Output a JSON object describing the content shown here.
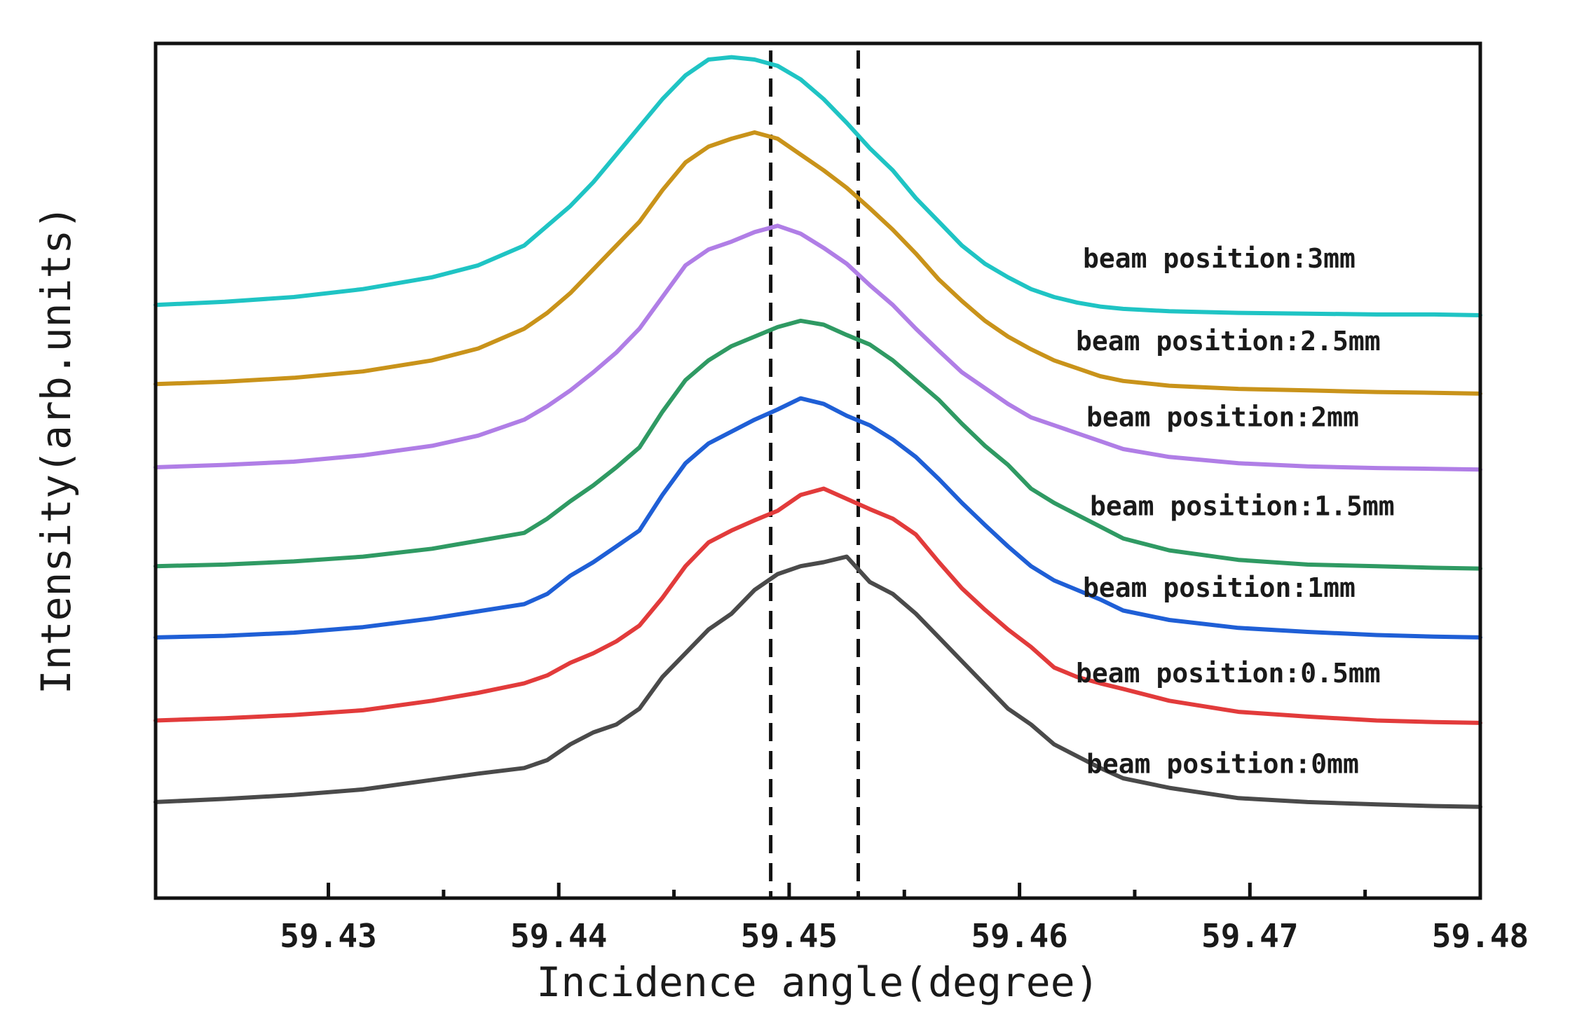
{
  "chart_data": {
    "type": "line",
    "title": "",
    "xlabel": "Incidence angle(degree)",
    "ylabel": "Intensity(arb.units)",
    "xlim": [
      59.4225,
      59.48
    ],
    "ylim": [
      0,
      1.0
    ],
    "grid": false,
    "x_ticks": [
      "59.43",
      "59.44",
      "59.45",
      "59.46",
      "59.47",
      "59.48"
    ],
    "x_tick_values": [
      59.43,
      59.44,
      59.45,
      59.46,
      59.47,
      59.48
    ],
    "minor_x_ticks": [
      59.435,
      59.445,
      59.455,
      59.465,
      59.475
    ],
    "y_ticks_shown": false,
    "reference_lines": [
      {
        "x": 59.4492,
        "style": "dashed",
        "color": "#111111"
      },
      {
        "x": 59.453,
        "style": "dashed",
        "color": "#111111"
      }
    ],
    "x": [
      59.4225,
      59.4255,
      59.4285,
      59.4315,
      59.4345,
      59.4365,
      59.4385,
      59.4395,
      59.4405,
      59.4415,
      59.4425,
      59.4435,
      59.4445,
      59.4455,
      59.4465,
      59.4475,
      59.4485,
      59.4495,
      59.4505,
      59.4515,
      59.4525,
      59.4535,
      59.4545,
      59.4555,
      59.4565,
      59.4575,
      59.4585,
      59.4595,
      59.4605,
      59.4615,
      59.4625,
      59.4635,
      59.4645,
      59.4665,
      59.4695,
      59.4725,
      59.4755,
      59.478,
      59.48
    ],
    "series": [
      {
        "name": "beam position:0mm",
        "label": "beam position:0mm",
        "color": "#4a4a4a",
        "values": [
          0.062,
          0.066,
          0.071,
          0.078,
          0.09,
          0.098,
          0.105,
          0.115,
          0.135,
          0.15,
          0.16,
          0.18,
          0.22,
          0.25,
          0.28,
          0.3,
          0.33,
          0.35,
          0.36,
          0.365,
          0.372,
          0.34,
          0.325,
          0.3,
          0.27,
          0.24,
          0.21,
          0.18,
          0.16,
          0.135,
          0.12,
          0.105,
          0.092,
          0.08,
          0.067,
          0.062,
          0.059,
          0.057,
          0.056
        ]
      },
      {
        "name": "beam position:0.5mm",
        "label": "beam position:0.5mm",
        "color": "#e23b3b",
        "values": [
          0.165,
          0.168,
          0.172,
          0.178,
          0.19,
          0.2,
          0.212,
          0.222,
          0.238,
          0.25,
          0.265,
          0.285,
          0.32,
          0.36,
          0.39,
          0.405,
          0.418,
          0.43,
          0.45,
          0.458,
          0.445,
          0.432,
          0.42,
          0.4,
          0.365,
          0.332,
          0.305,
          0.28,
          0.258,
          0.232,
          0.22,
          0.212,
          0.205,
          0.19,
          0.176,
          0.17,
          0.165,
          0.163,
          0.162
        ]
      },
      {
        "name": "beam position:1mm",
        "label": "beam position:1mm",
        "color": "#1f5fd6",
        "values": [
          0.27,
          0.272,
          0.276,
          0.283,
          0.294,
          0.303,
          0.312,
          0.325,
          0.348,
          0.365,
          0.385,
          0.405,
          0.45,
          0.49,
          0.515,
          0.53,
          0.545,
          0.558,
          0.572,
          0.565,
          0.55,
          0.538,
          0.52,
          0.498,
          0.47,
          0.44,
          0.412,
          0.385,
          0.36,
          0.342,
          0.33,
          0.318,
          0.304,
          0.292,
          0.282,
          0.277,
          0.273,
          0.271,
          0.27
        ]
      },
      {
        "name": "beam position:1.5mm",
        "label": "beam position:1.5mm",
        "color": "#2f9a63",
        "values": [
          0.36,
          0.362,
          0.366,
          0.372,
          0.382,
          0.392,
          0.402,
          0.42,
          0.442,
          0.462,
          0.485,
          0.51,
          0.555,
          0.595,
          0.62,
          0.638,
          0.65,
          0.662,
          0.67,
          0.665,
          0.652,
          0.64,
          0.62,
          0.595,
          0.57,
          0.54,
          0.512,
          0.488,
          0.458,
          0.44,
          0.425,
          0.41,
          0.395,
          0.38,
          0.368,
          0.362,
          0.36,
          0.358,
          0.357
        ]
      },
      {
        "name": "beam position:2mm",
        "label": "beam position:2mm",
        "color": "#b07ee6",
        "values": [
          0.485,
          0.488,
          0.492,
          0.5,
          0.512,
          0.525,
          0.545,
          0.562,
          0.582,
          0.605,
          0.63,
          0.66,
          0.7,
          0.74,
          0.76,
          0.77,
          0.782,
          0.79,
          0.78,
          0.762,
          0.742,
          0.715,
          0.69,
          0.66,
          0.632,
          0.605,
          0.585,
          0.565,
          0.548,
          0.538,
          0.528,
          0.518,
          0.508,
          0.498,
          0.49,
          0.486,
          0.484,
          0.483,
          0.482
        ]
      },
      {
        "name": "beam position:2.5mm",
        "label": "beam position:2.5mm",
        "color": "#c9931a",
        "values": [
          0.59,
          0.593,
          0.598,
          0.606,
          0.62,
          0.635,
          0.66,
          0.68,
          0.705,
          0.735,
          0.765,
          0.795,
          0.835,
          0.87,
          0.89,
          0.9,
          0.908,
          0.9,
          0.88,
          0.86,
          0.838,
          0.812,
          0.785,
          0.755,
          0.722,
          0.695,
          0.67,
          0.65,
          0.634,
          0.62,
          0.61,
          0.6,
          0.594,
          0.588,
          0.584,
          0.582,
          0.58,
          0.579,
          0.578
        ]
      },
      {
        "name": "beam position:3mm",
        "label": "beam position:3mm",
        "color": "#1fc4c4",
        "values": [
          0.69,
          0.694,
          0.7,
          0.71,
          0.725,
          0.74,
          0.765,
          0.79,
          0.815,
          0.845,
          0.88,
          0.915,
          0.95,
          0.98,
          1.0,
          1.003,
          1.0,
          0.992,
          0.975,
          0.95,
          0.92,
          0.888,
          0.86,
          0.825,
          0.795,
          0.765,
          0.742,
          0.725,
          0.71,
          0.7,
          0.693,
          0.688,
          0.685,
          0.682,
          0.68,
          0.679,
          0.678,
          0.678,
          0.677
        ]
      }
    ]
  }
}
